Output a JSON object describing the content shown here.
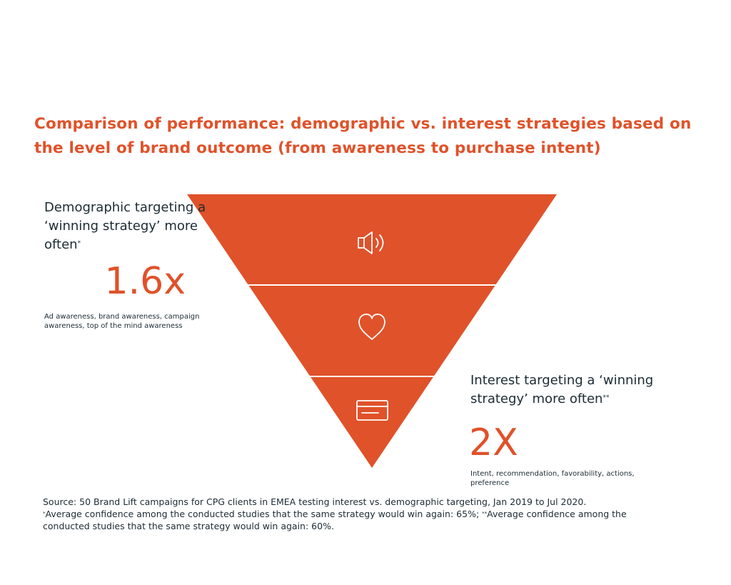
{
  "title": "Comparison of performance: demographic vs. interest strategies based on the level of brand outcome (from awareness to purchase intent)",
  "colors": {
    "accent": "#e0522a",
    "text": "#1c2b33",
    "divider": "#ffffff"
  },
  "funnel": {
    "stages": [
      {
        "icon": "speaker-icon"
      },
      {
        "icon": "heart-icon"
      },
      {
        "icon": "credit-card-icon"
      }
    ]
  },
  "demographic": {
    "label": "Demographic targeting a ‘winning strategy’ more often",
    "marker": "*",
    "value": "1.6x",
    "description": "Ad awareness, brand awareness, campaign awareness, top of the mind awareness"
  },
  "interest": {
    "label": "Interest targeting a ‘winning strategy’ more often",
    "marker": "**",
    "value": "2X",
    "description": "Intent, recommendation, favorability, actions, preference"
  },
  "source": {
    "line1": "Source: 50 Brand Lift campaigns for CPG clients in EMEA testing interest vs. demographic targeting, Jan 2019 to Jul 2020.",
    "note1_marker": "*",
    "note1": "Average confidence among the conducted studies that the same strategy would win again: 65%; ",
    "note2_marker": "**",
    "note2": "Average confidence among the conducted studies that the same strategy would win again: 60%."
  }
}
